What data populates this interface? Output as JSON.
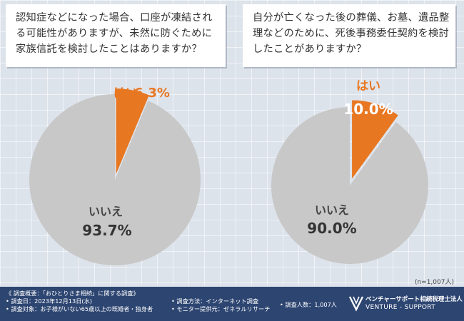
{
  "chart_data": [
    {
      "type": "pie",
      "title": "認知症などになった場合、口座が凍結される可能性がありますが、未然に防ぐために家族信託を検討したことはありますか？",
      "slices": [
        {
          "label": "はい",
          "value": 6.3,
          "value_label": "6.3%",
          "color": "#e87722"
        },
        {
          "label": "いいえ",
          "value": 93.7,
          "value_label": "93.7%",
          "color": "#c8c8c8"
        }
      ]
    },
    {
      "type": "pie",
      "title": "自分が亡くなった後の葬儀、お墓、遺品整理などのために、死後事務委任契約を検討したことがありますか？",
      "slices": [
        {
          "label": "はい",
          "value": 10.0,
          "value_label": "10.0%",
          "color": "#e87722"
        },
        {
          "label": "いいえ",
          "value": 90.0,
          "value_label": "90.0%",
          "color": "#c8c8c8"
        }
      ]
    }
  ],
  "questions": {
    "left": "認知症などになった場合、口座が凍結される可能性がありますが、未然に防ぐために家族信託を検討したことはありますか？",
    "right": "自分が亡くなった後の葬儀、お墓、遺品整理などのために、死後事務委任契約を検討したことがありますか？"
  },
  "sample_note": "(n=1,007人)",
  "footer": {
    "survey_overview": "《 調査概要：「おひとりさま相続」に関する調査》",
    "survey_date": "• 調査日：2023年12月13日(水)",
    "survey_target": "• 調査対象：お子様がいない65歳以上の既婚者・独身者",
    "survey_method": "• 調査方法：インターネット調査",
    "monitor_provider": "• モニター提供元：ゼネラルリサーチ",
    "respondents": "• 調査人数：1,007人",
    "brand_jp": "ベンチャーサポート相続税理士法人",
    "brand_en": "VENTURE - SUPPORT"
  }
}
